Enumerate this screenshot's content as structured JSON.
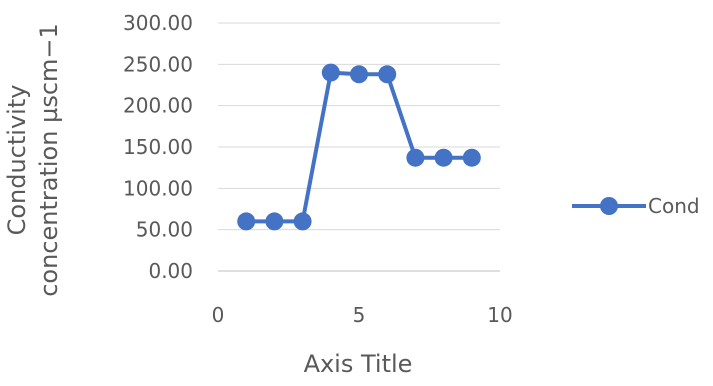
{
  "chart_data": {
    "type": "scatter",
    "title": "",
    "xlabel": "Axis Title",
    "ylabel_lines": [
      "Conductivity",
      "concentration µscm−1"
    ],
    "xlim": [
      0,
      10
    ],
    "ylim": [
      0,
      300
    ],
    "x_ticks": [
      "0",
      "5",
      "10"
    ],
    "y_ticks": [
      "0.00",
      "50.00",
      "100.00",
      "150.00",
      "200.00",
      "250.00",
      "300.00"
    ],
    "grid": "horizontal",
    "legend_position": "right",
    "series": [
      {
        "name": "Cond",
        "color": "#4472C4",
        "marker": "circle",
        "x": [
          1,
          2,
          3,
          4,
          5,
          6,
          7,
          8,
          9
        ],
        "y": [
          60,
          60,
          60,
          240,
          238,
          238,
          137,
          137,
          137
        ]
      }
    ]
  }
}
